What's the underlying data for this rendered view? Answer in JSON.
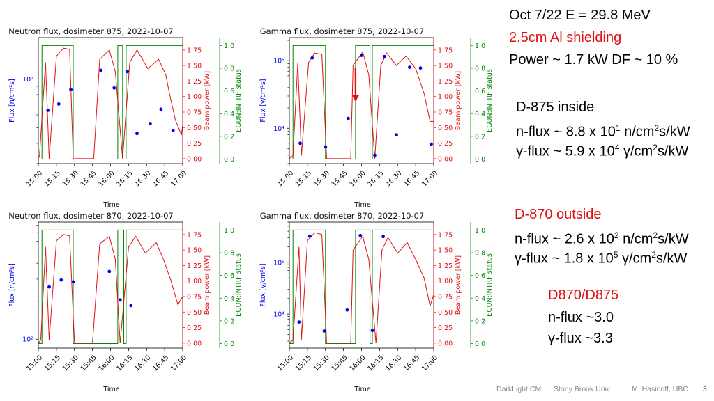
{
  "colors": {
    "flux": "#0000ee",
    "power": "#e01010",
    "status": "#008800",
    "red_text": "#e01010"
  },
  "chart_data": [
    {
      "type": "line",
      "title": "Neutron flux, dosimeter 875, 2022-10-07",
      "xlabel": "Time",
      "ylabel_left": "Flux [n/cm²s]",
      "ylabel_right1": "Beam power [kW]",
      "ylabel_right2": "EGUN:INTRF status",
      "x_ticks": [
        "15:00",
        "15:15",
        "15:30",
        "15:45",
        "16:00",
        "16:15",
        "16:30",
        "16:45",
        "17:00"
      ],
      "x_range": [
        0,
        120
      ],
      "y_left": {
        "scale": "log",
        "range": [
          30,
          180
        ],
        "ticks": [
          {
            "v": 100,
            "label": "10²"
          }
        ]
      },
      "y_right1": {
        "range": [
          -0.08,
          1.95
        ],
        "ticks": [
          0.0,
          0.25,
          0.5,
          0.75,
          1.0,
          1.25,
          1.5,
          1.75
        ],
        "labels": [
          "0.00",
          "0.25",
          "0.50",
          "0.75",
          "1.00",
          "1.25",
          "1.50",
          "1.75"
        ]
      },
      "y_right2": {
        "range": [
          -0.04,
          1.07
        ],
        "ticks": [
          0.0,
          0.2,
          0.4,
          0.6,
          0.8,
          1.0
        ],
        "labels": [
          "0.0",
          "0.2",
          "0.4",
          "0.6",
          "0.8",
          "1.0"
        ]
      },
      "flux_points": [
        [
          8,
          64
        ],
        [
          17,
          70
        ],
        [
          27,
          86
        ],
        [
          52,
          113
        ],
        [
          63,
          88
        ],
        [
          74,
          111
        ],
        [
          82,
          46
        ],
        [
          93,
          53
        ],
        [
          102,
          65
        ],
        [
          112,
          48
        ]
      ],
      "power_series": [
        [
          0,
          0
        ],
        [
          1,
          0.05
        ],
        [
          6,
          1.55
        ],
        [
          9,
          0.0
        ],
        [
          15,
          1.65
        ],
        [
          21,
          1.78
        ],
        [
          26,
          1.76
        ],
        [
          29,
          0
        ],
        [
          46,
          0
        ],
        [
          51,
          1.6
        ],
        [
          59,
          1.75
        ],
        [
          64,
          1.4
        ],
        [
          70,
          0
        ],
        [
          76,
          1.55
        ],
        [
          82,
          1.75
        ],
        [
          91,
          1.45
        ],
        [
          100,
          1.6
        ],
        [
          106,
          1.35
        ],
        [
          109,
          1.05
        ],
        [
          114,
          0.62
        ],
        [
          119,
          0.38
        ],
        [
          120,
          0.55
        ]
      ],
      "status_series": [
        [
          0,
          0
        ],
        [
          3,
          0
        ],
        [
          3,
          1
        ],
        [
          29,
          1
        ],
        [
          29,
          0
        ],
        [
          66,
          0
        ],
        [
          66,
          1
        ],
        [
          70,
          1
        ],
        [
          70,
          0
        ],
        [
          73,
          0
        ],
        [
          73,
          1
        ],
        [
          120,
          1
        ]
      ]
    },
    {
      "type": "line",
      "title": "Gamma flux, dosimeter 875, 2022-10-07",
      "xlabel": "Time",
      "ylabel_left": "Flux [γ/cm²s]",
      "ylabel_right1": "Beam power [kW]",
      "ylabel_right2": "EGUN:INTRF status",
      "x_ticks": [
        "15:00",
        "15:15",
        "15:30",
        "15:45",
        "16:00",
        "16:15",
        "16:30",
        "16:45",
        "17:00"
      ],
      "x_range": [
        0,
        120
      ],
      "y_left": {
        "scale": "log",
        "range": [
          3000,
          220000
        ],
        "ticks": [
          {
            "v": 10000,
            "label": "10⁴"
          },
          {
            "v": 100000,
            "label": "10⁵"
          }
        ]
      },
      "y_right1": {
        "range": [
          -0.08,
          1.95
        ],
        "ticks": [
          0.0,
          0.25,
          0.5,
          0.75,
          1.0,
          1.25,
          1.5,
          1.75
        ],
        "labels": [
          "0.00",
          "0.25",
          "0.50",
          "0.75",
          "1.00",
          "1.25",
          "1.50",
          "1.75"
        ]
      },
      "y_right2": {
        "range": [
          -0.04,
          1.07
        ],
        "ticks": [
          0.0,
          0.2,
          0.4,
          0.6,
          0.8,
          1.0
        ],
        "labels": [
          "0.0",
          "0.2",
          "0.4",
          "0.6",
          "0.8",
          "1.0"
        ]
      },
      "flux_points": [
        [
          9,
          6000
        ],
        [
          19,
          110000
        ],
        [
          30,
          5300
        ],
        [
          49,
          14000
        ],
        [
          60,
          120000
        ],
        [
          71,
          4000
        ],
        [
          79,
          115000
        ],
        [
          89,
          8000
        ],
        [
          100,
          80000
        ],
        [
          109,
          78000
        ],
        [
          118,
          5800
        ]
      ],
      "power_series": [
        [
          0,
          0
        ],
        [
          3,
          0.05
        ],
        [
          7,
          1.55
        ],
        [
          10,
          0.05
        ],
        [
          16,
          1.55
        ],
        [
          21,
          1.7
        ],
        [
          27,
          1.68
        ],
        [
          31,
          0
        ],
        [
          51,
          0
        ],
        [
          53,
          1.5
        ],
        [
          61,
          1.72
        ],
        [
          66,
          1.35
        ],
        [
          71,
          0
        ],
        [
          76,
          1.5
        ],
        [
          81,
          1.7
        ],
        [
          89,
          1.5
        ],
        [
          97,
          1.65
        ],
        [
          105,
          1.45
        ],
        [
          112,
          1.05
        ],
        [
          117,
          0.6
        ],
        [
          120,
          0.6
        ]
      ],
      "status_series": [
        [
          0,
          0
        ],
        [
          3,
          0
        ],
        [
          3,
          1
        ],
        [
          30,
          1
        ],
        [
          30,
          0
        ],
        [
          55,
          0
        ],
        [
          55,
          1
        ],
        [
          67,
          1
        ],
        [
          67,
          0
        ],
        [
          69,
          0
        ],
        [
          69,
          1
        ],
        [
          120,
          1
        ]
      ],
      "arrow": {
        "x": 55,
        "y_from": 1.47,
        "y_to": 0.92
      }
    },
    {
      "type": "line",
      "title": "Neutron flux, dosimeter 870, 2022-10-07",
      "xlabel": "Time",
      "ylabel_left": "Flux [n/cm²s]",
      "ylabel_right1": "Beam power [kW]",
      "ylabel_right2": "EGUN:INTRF status",
      "x_ticks": [
        "15:00",
        "15:15",
        "15:30",
        "15:45",
        "16:00",
        "16:15",
        "16:30",
        "16:45",
        "17:00"
      ],
      "x_range": [
        0,
        120
      ],
      "y_left": {
        "scale": "log",
        "range": [
          85,
          850
        ],
        "ticks": [
          {
            "v": 100,
            "label": "10²"
          }
        ]
      },
      "y_right1": {
        "range": [
          -0.08,
          1.95
        ],
        "ticks": [
          0.0,
          0.25,
          0.5,
          0.75,
          1.0,
          1.25,
          1.5,
          1.75
        ],
        "labels": [
          "0.00",
          "0.25",
          "0.50",
          "0.75",
          "1.00",
          "1.25",
          "1.50",
          "1.75"
        ]
      },
      "y_right2": {
        "range": [
          -0.04,
          1.07
        ],
        "ticks": [
          0.0,
          0.2,
          0.4,
          0.6,
          0.8,
          1.0
        ],
        "labels": [
          "0.0",
          "0.2",
          "0.4",
          "0.6",
          "0.8",
          "1.0"
        ]
      },
      "flux_points": [
        [
          9,
          260
        ],
        [
          19,
          295
        ],
        [
          29,
          285
        ],
        [
          59,
          345
        ],
        [
          68,
          205
        ],
        [
          77,
          185
        ]
      ],
      "power_series": [
        [
          0,
          0
        ],
        [
          2,
          0.05
        ],
        [
          6,
          1.55
        ],
        [
          9,
          0.05
        ],
        [
          15,
          1.65
        ],
        [
          21,
          1.75
        ],
        [
          26,
          1.73
        ],
        [
          30,
          0
        ],
        [
          45,
          0
        ],
        [
          51,
          1.6
        ],
        [
          59,
          1.72
        ],
        [
          64,
          1.35
        ],
        [
          68,
          0
        ],
        [
          75,
          1.55
        ],
        [
          81,
          1.72
        ],
        [
          89,
          1.45
        ],
        [
          98,
          1.62
        ],
        [
          104,
          1.35
        ],
        [
          110,
          1.02
        ],
        [
          116,
          0.62
        ],
        [
          120,
          0.75
        ]
      ],
      "status_series": [
        [
          0,
          0
        ],
        [
          3,
          0
        ],
        [
          3,
          1
        ],
        [
          29,
          1
        ],
        [
          29,
          0
        ],
        [
          66,
          0
        ],
        [
          66,
          1
        ],
        [
          71,
          1
        ],
        [
          71,
          0
        ],
        [
          73,
          0
        ],
        [
          73,
          1
        ],
        [
          120,
          1
        ]
      ]
    },
    {
      "type": "line",
      "title": "Gamma flux, dosimeter 870, 2022-10-07",
      "xlabel": "Time",
      "ylabel_left": "Flux [γ/cm²s]",
      "ylabel_right1": "Beam power [kW]",
      "ylabel_right2": "EGUN:INTRF status",
      "x_ticks": [
        "15:00",
        "15:15",
        "15:30",
        "15:45",
        "16:00",
        "16:15",
        "16:30",
        "16:45",
        "17:00"
      ],
      "x_range": [
        0,
        120
      ],
      "y_left": {
        "scale": "log",
        "range": [
          2200,
          600000
        ],
        "ticks": [
          {
            "v": 10000,
            "label": "10⁴"
          },
          {
            "v": 100000,
            "label": "10⁵"
          }
        ]
      },
      "y_right1": {
        "range": [
          -0.08,
          1.95
        ],
        "ticks": [
          0.0,
          0.25,
          0.5,
          0.75,
          1.0,
          1.25,
          1.5,
          1.75
        ],
        "labels": [
          "0.00",
          "0.25",
          "0.50",
          "0.75",
          "1.00",
          "1.25",
          "1.50",
          "1.75"
        ]
      },
      "y_right2": {
        "range": [
          -0.04,
          1.07
        ],
        "ticks": [
          0.0,
          0.2,
          0.4,
          0.6,
          0.8,
          1.0
        ],
        "labels": [
          "0.0",
          "0.2",
          "0.4",
          "0.6",
          "0.8",
          "1.0"
        ]
      },
      "flux_points": [
        [
          8,
          7000
        ],
        [
          17,
          320000
        ],
        [
          29,
          4700
        ],
        [
          48,
          12000
        ],
        [
          59,
          330000
        ],
        [
          69,
          4800
        ],
        [
          78,
          315000
        ]
      ],
      "power_series": [
        [
          0,
          0
        ],
        [
          3,
          0.05
        ],
        [
          8,
          1.55
        ],
        [
          10,
          0.05
        ],
        [
          15,
          1.65
        ],
        [
          21,
          1.78
        ],
        [
          27,
          1.75
        ],
        [
          31,
          0
        ],
        [
          51,
          0
        ],
        [
          53,
          1.5
        ],
        [
          61,
          1.72
        ],
        [
          66,
          1.35
        ],
        [
          72,
          0
        ],
        [
          77,
          1.5
        ],
        [
          82,
          1.7
        ],
        [
          90,
          1.45
        ],
        [
          98,
          1.62
        ],
        [
          105,
          1.35
        ],
        [
          112,
          1.05
        ],
        [
          117,
          0.6
        ],
        [
          120,
          0.78
        ]
      ],
      "status_series": [
        [
          0,
          0
        ],
        [
          3,
          0
        ],
        [
          3,
          1
        ],
        [
          30,
          1
        ],
        [
          30,
          0
        ],
        [
          55,
          0
        ],
        [
          55,
          1
        ],
        [
          67,
          1
        ],
        [
          67,
          0
        ],
        [
          69,
          0
        ],
        [
          69,
          1
        ],
        [
          120,
          1
        ]
      ]
    }
  ],
  "notes": {
    "header_line1": "Oct 7/22  E = 29.8 MeV",
    "header_line2": "2.5cm Al shielding",
    "header_line3": "Power ~ 1.7 kW   DF ~ 10 %",
    "d875_title": "D-875   inside",
    "d875_n_prefix": "n-flux ~ 8.8 x 10",
    "d875_n_exp": "1",
    "d875_n_mid": " n/cm",
    "d875_n_exp2": "2",
    "d875_n_suffix": "s/kW",
    "d875_g_prefix": "γ-flux ~ 5.9 x 10",
    "d875_g_exp": "4",
    "d875_g_mid": " γ/cm",
    "d875_g_exp2": "2",
    "d875_g_suffix": "s/kW",
    "d870_title": "D-870  outside",
    "d870_n_prefix": "n-flux ~ 2.6 x 10",
    "d870_n_exp": "2",
    "d870_n_mid": " n/cm",
    "d870_n_exp2": "2",
    "d870_n_suffix": "s/kW",
    "d870_g_prefix": "γ-flux ~ 1.8 x 10",
    "d870_g_exp": "5",
    "d870_g_mid": " γ/cm",
    "d870_g_exp2": "2",
    "d870_g_suffix": "s/kW",
    "ratio_title": "D870/D875",
    "ratio_n": "n-flux ~3.0",
    "ratio_g": "γ-flux ~3.3"
  },
  "footer": {
    "project": "DarkLight CM",
    "institution": "Stony Brook Univ",
    "author": "M. Hasinoff, UBC",
    "page": "3"
  }
}
